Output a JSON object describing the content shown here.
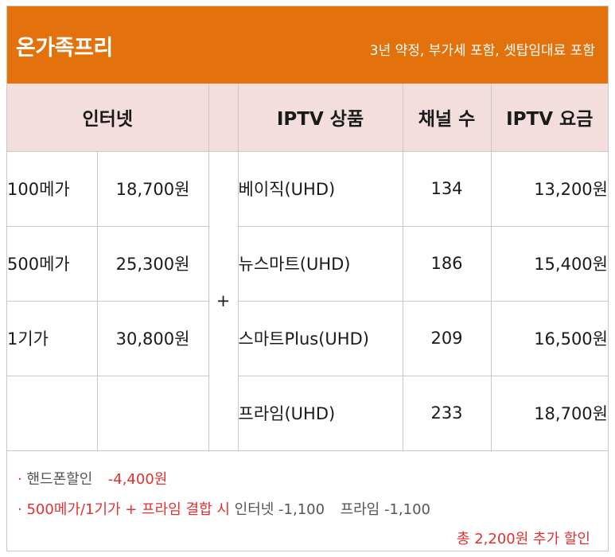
{
  "header": {
    "title": "온가족프리",
    "note": "3년 약정, 부가세 포함, 셋탑임대료 포함"
  },
  "table": {
    "headers": {
      "internet": "인터넷",
      "product": "IPTV 상품",
      "channels": "채널 수",
      "fee": "IPTV 요금"
    },
    "plus": "+",
    "internet_rows": [
      {
        "speed": "100메가",
        "price": "18,700원"
      },
      {
        "speed": "500메가",
        "price": "25,300원"
      },
      {
        "speed": "1기가",
        "price": "30,800원"
      }
    ],
    "iptv_rows": [
      {
        "name": "베이직(UHD)",
        "channels": "134",
        "fee": "13,200원"
      },
      {
        "name": "뉴스마트(UHD)",
        "channels": "186",
        "fee": "15,400원"
      },
      {
        "name": "스마트Plus(UHD)",
        "channels": "209",
        "fee": "16,500원"
      },
      {
        "name": "프라임(UHD)",
        "channels": "233",
        "fee": "18,700원"
      }
    ]
  },
  "footer": {
    "bullet": "·",
    "phone_label": "핸드폰할인",
    "phone_value": "-4,400원",
    "combo_label": "500메가/1기가 + 프라임 결합 시",
    "combo_internet": "인터넷 -1,100",
    "combo_prime": "프라임 -1,100",
    "total": "총 2,200원 추가 할인"
  },
  "colors": {
    "header_bg": "#e3720c",
    "head_row_bg": "#f3dedd",
    "accent_red": "#e53030",
    "border": "#c9c9c9"
  }
}
